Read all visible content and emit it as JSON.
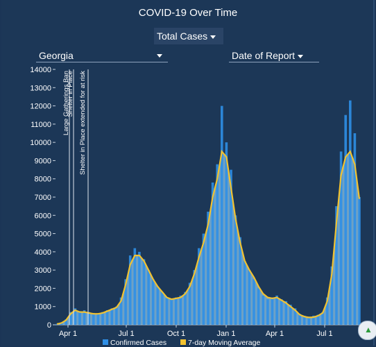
{
  "title": "COVID-19 Over Time",
  "controls": {
    "metric": "Total Cases",
    "state": "Georgia",
    "date_type": "Date of Report"
  },
  "colors": {
    "bars": "#2f8fe6",
    "area": "#7db4d8",
    "moving_average": "#f2c230",
    "background": "#1c3757"
  },
  "chart_data": {
    "type": "bar",
    "x_ticks": [
      "Apr 1",
      "Jul 1",
      "Oct 1",
      "Jan 1",
      "Apr 1",
      "Jul 1"
    ],
    "y_ticks": [
      0,
      1000,
      2000,
      3000,
      4000,
      5000,
      6000,
      7000,
      8000,
      9000,
      10000,
      11000,
      12000,
      13000,
      14000
    ],
    "ylim": [
      0,
      14000
    ],
    "grid": false,
    "legend_position": "bottom",
    "annotations": [
      "Large Gatherings Ban",
      "Shelter in Place",
      "Shelter in Place extended for at risk"
    ],
    "series": [
      {
        "name": "Confirmed Cases",
        "type": "bar",
        "weekly_values": [
          50,
          120,
          300,
          700,
          900,
          750,
          800,
          700,
          650,
          600,
          700,
          800,
          900,
          1000,
          1500,
          2500,
          3800,
          4200,
          4000,
          3600,
          3000,
          2500,
          2100,
          1800,
          1500,
          1400,
          1500,
          1600,
          1800,
          2300,
          3000,
          4200,
          5000,
          6200,
          7800,
          8800,
          12000,
          10000,
          8500,
          6000,
          4800,
          3500,
          3000,
          2500,
          2000,
          1600,
          1400,
          1500,
          1600,
          1400,
          1300,
          1100,
          900,
          600,
          500,
          450,
          500,
          550,
          700,
          1500,
          3200,
          6500,
          9500,
          11500,
          12300,
          10500,
          7000
        ]
      },
      {
        "name": "7-day Moving Average",
        "type": "line",
        "weekly_values": [
          40,
          100,
          250,
          600,
          800,
          700,
          700,
          650,
          600,
          600,
          650,
          750,
          850,
          950,
          1300,
          2200,
          3300,
          3800,
          3800,
          3500,
          3000,
          2500,
          2100,
          1800,
          1500,
          1400,
          1450,
          1500,
          1700,
          2100,
          2800,
          3700,
          4500,
          5500,
          7000,
          8000,
          9500,
          9200,
          7500,
          5800,
          4500,
          3500,
          3000,
          2600,
          2100,
          1700,
          1500,
          1450,
          1500,
          1350,
          1200,
          1000,
          800,
          550,
          450,
          400,
          420,
          500,
          650,
          1300,
          2800,
          5600,
          8200,
          9200,
          9500,
          8800,
          6900
        ]
      }
    ]
  }
}
